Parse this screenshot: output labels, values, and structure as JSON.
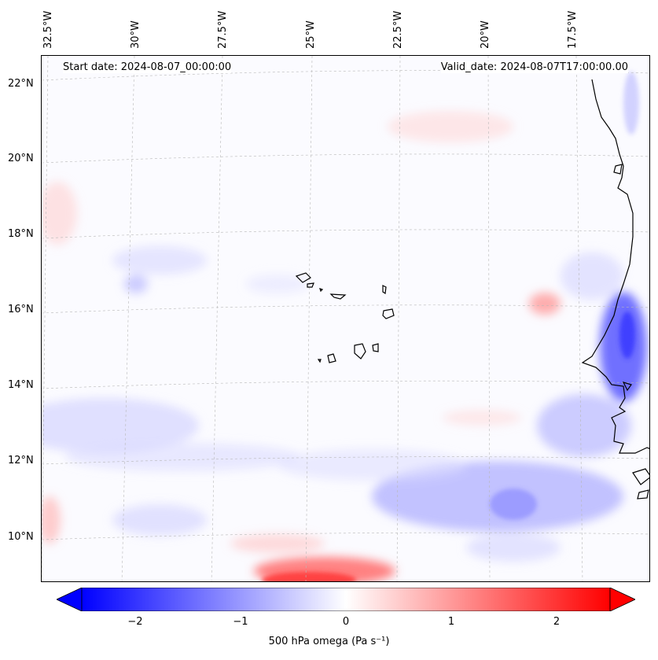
{
  "header": {
    "start_date": "Start date: 2024-08-07_00:00:00",
    "valid_date": "Valid_date: 2024-08-07T17:00:00.00"
  },
  "map": {
    "longitude_labels": [
      "32.5°W",
      "30°W",
      "27.5°W",
      "25°W",
      "22.5°W",
      "20°W",
      "17.5°W"
    ],
    "latitude_labels": [
      "22°N",
      "20°N",
      "18°N",
      "16°N",
      "14°N",
      "12°N",
      "10°N"
    ],
    "field": "500 hPa omega",
    "colormap": "bwr",
    "positive_color": "#ff0000",
    "negative_color": "#0000ff",
    "neutral_color": "#ffffff",
    "coastline_color": "#000000",
    "gridlines": true
  },
  "colorbar": {
    "min": -2.5,
    "max": 2.5,
    "extend": "both",
    "tick_labels": [
      "−2",
      "−1",
      "0",
      "1",
      "2"
    ],
    "tick_values": [
      -2,
      -1,
      0,
      1,
      2
    ],
    "label": "500 hPa omega (Pa s⁻¹)"
  }
}
